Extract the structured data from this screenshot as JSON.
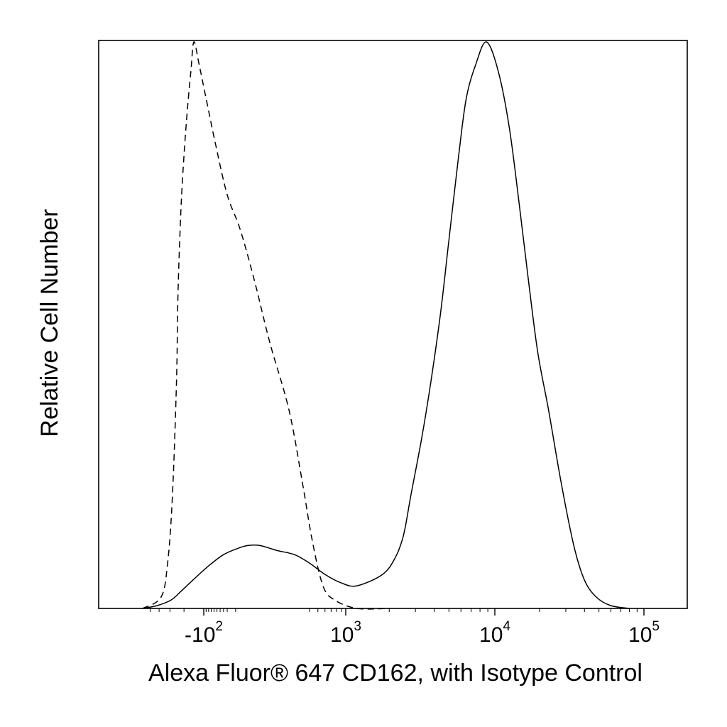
{
  "chart_data": {
    "type": "line",
    "title": "",
    "xlabel": "Alexa Fluor® 647 CD162, with Isotype Control",
    "ylabel": "Relative Cell Number",
    "x_scale": "biexponential",
    "x_ticks": [
      {
        "base": "-10",
        "exp": "2",
        "value": -100
      },
      {
        "base": "10",
        "exp": "3",
        "value": 1000
      },
      {
        "base": "10",
        "exp": "4",
        "value": 10000
      },
      {
        "base": "10",
        "exp": "5",
        "value": 100000
      }
    ],
    "y_unit": "percent of peak",
    "ylim": [
      0,
      100
    ],
    "grid": false,
    "series": [
      {
        "style": "dashed",
        "points": [
          [
            -600,
            0
          ],
          [
            -380,
            2
          ],
          [
            -320,
            8
          ],
          [
            -280,
            20
          ],
          [
            -250,
            40
          ],
          [
            -240,
            55
          ],
          [
            -220,
            70
          ],
          [
            -200,
            80
          ],
          [
            -180,
            88
          ],
          [
            -160,
            95
          ],
          [
            -145,
            100
          ],
          [
            -120,
            96
          ],
          [
            -90,
            90
          ],
          [
            -55,
            82
          ],
          [
            -20,
            73
          ],
          [
            10,
            67
          ],
          [
            50,
            58
          ],
          [
            110,
            47
          ],
          [
            220,
            35
          ],
          [
            330,
            22
          ],
          [
            430,
            12
          ],
          [
            570,
            4
          ],
          [
            760,
            1.5
          ],
          [
            1200,
            0
          ],
          [
            2000,
            0
          ]
        ]
      },
      {
        "style": "solid",
        "points": [
          [
            -600,
            0
          ],
          [
            -420,
            0.5
          ],
          [
            -290,
            1.5
          ],
          [
            -220,
            3
          ],
          [
            -150,
            5
          ],
          [
            -80,
            7.5
          ],
          [
            -30,
            9.5
          ],
          [
            5,
            10.6
          ],
          [
            30,
            11.1
          ],
          [
            70,
            11.1
          ],
          [
            150,
            10.2
          ],
          [
            260,
            9.5
          ],
          [
            400,
            8
          ],
          [
            600,
            6
          ],
          [
            900,
            4.5
          ],
          [
            1200,
            4
          ],
          [
            1800,
            6
          ],
          [
            2200,
            9
          ],
          [
            2500,
            13
          ],
          [
            2800,
            20
          ],
          [
            3300,
            30
          ],
          [
            3800,
            40
          ],
          [
            4400,
            52
          ],
          [
            5000,
            65
          ],
          [
            5800,
            80
          ],
          [
            6500,
            90
          ],
          [
            7500,
            96
          ],
          [
            8800,
            100
          ],
          [
            10500,
            95
          ],
          [
            12500,
            85
          ],
          [
            14500,
            72
          ],
          [
            17000,
            57
          ],
          [
            19500,
            45
          ],
          [
            23000,
            35
          ],
          [
            28000,
            22
          ],
          [
            34000,
            11
          ],
          [
            40000,
            5
          ],
          [
            48000,
            2
          ],
          [
            60000,
            0.5
          ],
          [
            80000,
            0
          ]
        ]
      }
    ]
  }
}
